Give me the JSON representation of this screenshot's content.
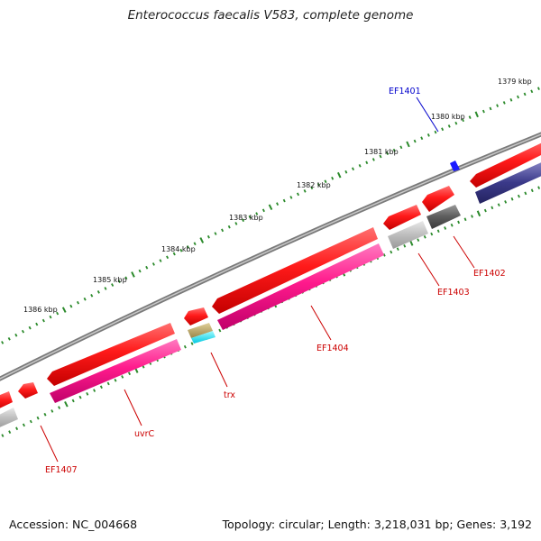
{
  "title": "Enterococcus faecalis V583, complete genome",
  "footer": {
    "accession": "Accession: NC_004668",
    "topology": "Topology: circular; Length: 3,218,031 bp; Genes: 3,192"
  },
  "colors": {
    "backbone": "#8a8a8a",
    "scale_dots": "#2b8a2b",
    "cds_red": "#ff1a1a",
    "cds_magenta": "#ff1a8c",
    "cds_navy": "#3b3a8a",
    "cds_gray": "#bfbfbf",
    "cds_darkgray": "#5c5c5c",
    "cds_tan": "#b5a060",
    "cds_cyan": "#00e5ff",
    "label_red": "#cc0000",
    "label_blue": "#0000cc"
  },
  "scale_ticks": [
    {
      "label": "1379 kbp"
    },
    {
      "label": "1380 kbp"
    },
    {
      "label": "1381 kbp"
    },
    {
      "label": "1382 kbp"
    },
    {
      "label": "1383 kbp"
    },
    {
      "label": "1384 kbp"
    },
    {
      "label": "1385 kbp"
    },
    {
      "label": "1386 kbp"
    }
  ],
  "gene_labels": [
    {
      "name": "EF1401",
      "color": "blue"
    },
    {
      "name": "EF1402",
      "color": "red"
    },
    {
      "name": "EF1403",
      "color": "red"
    },
    {
      "name": "EF1404",
      "color": "red"
    },
    {
      "name": "trx",
      "color": "red"
    },
    {
      "name": "uvrC",
      "color": "red"
    },
    {
      "name": "EF1407",
      "color": "red"
    }
  ]
}
